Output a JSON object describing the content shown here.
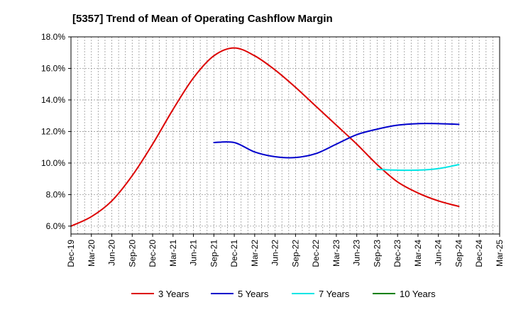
{
  "chart_data": {
    "type": "line",
    "title": "[5357]  Trend of Mean of Operating Cashflow Margin",
    "xlabel": "",
    "ylabel": "",
    "categories": [
      "Dec-19",
      "Mar-20",
      "Jun-20",
      "Sep-20",
      "Dec-20",
      "Mar-21",
      "Jun-21",
      "Sep-21",
      "Dec-21",
      "Mar-22",
      "Jun-22",
      "Sep-22",
      "Dec-22",
      "Mar-23",
      "Jun-23",
      "Sep-23",
      "Dec-23",
      "Mar-24",
      "Jun-24",
      "Sep-24",
      "Dec-24",
      "Mar-25"
    ],
    "ylim": [
      5.5,
      18.0
    ],
    "yticks": [
      6.0,
      8.0,
      10.0,
      12.0,
      14.0,
      16.0,
      18.0
    ],
    "ytick_labels": [
      "6.0%",
      "8.0%",
      "10.0%",
      "12.0%",
      "14.0%",
      "16.0%",
      "18.0%"
    ],
    "grid": true,
    "legend_position": "bottom",
    "series": [
      {
        "name": "3 Years",
        "color": "#dd0000",
        "values": [
          6.0,
          6.6,
          7.6,
          9.2,
          11.2,
          13.4,
          15.4,
          16.8,
          17.3,
          16.8,
          15.9,
          14.8,
          13.6,
          12.4,
          11.2,
          9.9,
          8.8,
          8.1,
          7.6,
          7.25,
          null,
          null
        ]
      },
      {
        "name": "5 Years",
        "color": "#0000cc",
        "values": [
          null,
          null,
          null,
          null,
          null,
          null,
          null,
          11.3,
          11.3,
          10.7,
          10.4,
          10.35,
          10.6,
          11.2,
          11.8,
          12.15,
          12.4,
          12.5,
          12.5,
          12.45,
          null,
          null
        ]
      },
      {
        "name": "7 Years",
        "color": "#00e5e5",
        "values": [
          null,
          null,
          null,
          null,
          null,
          null,
          null,
          null,
          null,
          null,
          null,
          null,
          null,
          null,
          null,
          9.6,
          9.55,
          9.55,
          9.65,
          9.9,
          null,
          null
        ]
      },
      {
        "name": "10 Years",
        "color": "#008000",
        "values": [
          null,
          null,
          null,
          null,
          null,
          null,
          null,
          null,
          null,
          null,
          null,
          null,
          null,
          null,
          null,
          null,
          null,
          null,
          null,
          null,
          null,
          null
        ]
      }
    ]
  }
}
